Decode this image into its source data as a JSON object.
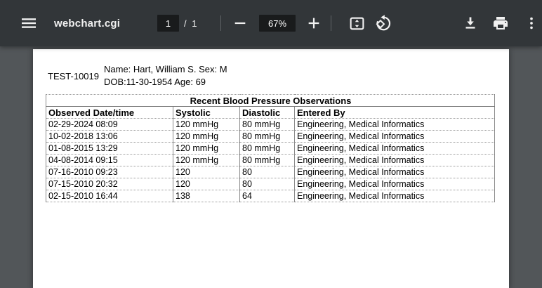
{
  "toolbar": {
    "title": "webchart.cgi",
    "page_current": "1",
    "page_of": "/ 1",
    "zoom_level": "67%",
    "icons": [
      "menu-icon",
      "zoom-out-icon",
      "zoom-in-icon",
      "fit-page-icon",
      "rotate-counterclockwise-icon",
      "download-icon",
      "print-icon",
      "more-vert-icon"
    ]
  },
  "document": {
    "patient_id": "TEST-10019",
    "name_line": "Name: Hart, William S. Sex: M",
    "dob_line": "DOB:11-30-1954 Age: 69",
    "table": {
      "title": "Recent Blood Pressure Observations",
      "columns": [
        "Observed Date/time",
        "Systolic",
        "Diastolic",
        "Entered By"
      ],
      "rows": [
        [
          "02-29-2024 08:09",
          "120 mmHg",
          "80 mmHg",
          "Engineering, Medical Informatics"
        ],
        [
          "10-02-2018 13:06",
          "120 mmHg",
          "80 mmHg",
          "Engineering, Medical Informatics"
        ],
        [
          "01-08-2015 13:29",
          "120 mmHg",
          "80 mmHg",
          "Engineering, Medical Informatics"
        ],
        [
          "04-08-2014 09:15",
          "120 mmHg",
          "80 mmHg",
          "Engineering, Medical Informatics"
        ],
        [
          "07-16-2010 09:23",
          "120",
          "80",
          "Engineering, Medical Informatics"
        ],
        [
          "07-15-2010 20:32",
          "120",
          "80",
          "Engineering, Medical Informatics"
        ],
        [
          "02-15-2010 16:44",
          "138",
          "64",
          "Engineering, Medical Informatics"
        ]
      ]
    }
  },
  "colors": {
    "toolbar_bg": "#323639",
    "viewer_bg": "#525659",
    "input_box_bg": "#191b1c",
    "toolbar_text": "#f1f1f1",
    "page_bg": "#ffffff",
    "table_border": "#8a8a8a"
  }
}
